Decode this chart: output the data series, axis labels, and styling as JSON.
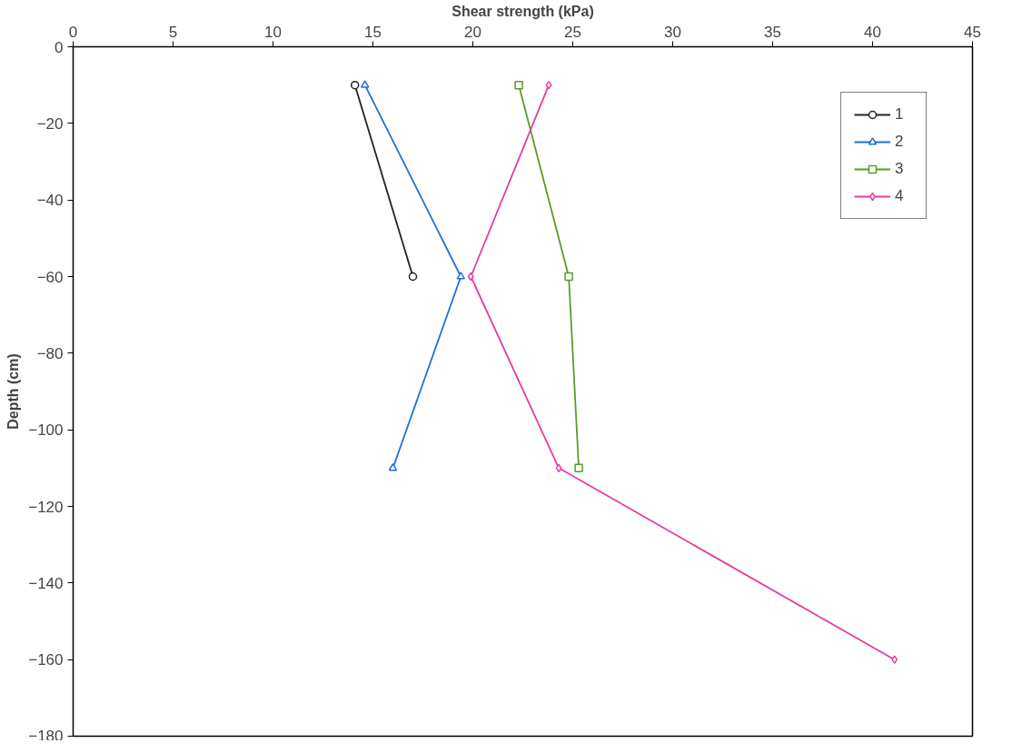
{
  "chart_data": {
    "type": "line",
    "xlabel": "Shear strength (kPa)",
    "ylabel": "Depth (cm)",
    "xlim": [
      0,
      45
    ],
    "xticks": [
      0,
      5,
      10,
      15,
      20,
      25,
      30,
      35,
      40,
      45
    ],
    "ylim": [
      -180,
      0
    ],
    "yticks": [
      0,
      -20,
      -40,
      -60,
      -80,
      -100,
      -120,
      -140,
      -160,
      -180
    ],
    "grid": false,
    "legend": "top right",
    "line_style": "solid",
    "series": [
      {
        "name": "1",
        "color": "#222222",
        "marker": "circle",
        "x": [
          14.1,
          17.0
        ],
        "values": [
          -10,
          -60
        ]
      },
      {
        "name": "2",
        "color": "#1f6fdc",
        "marker": "triangle",
        "x": [
          14.6,
          19.4,
          16.0
        ],
        "values": [
          -10,
          -60,
          -110
        ]
      },
      {
        "name": "3",
        "color": "#5a9a2a",
        "marker": "square",
        "x": [
          22.3,
          24.8,
          25.3
        ],
        "values": [
          -10,
          -60,
          -110
        ]
      },
      {
        "name": "4",
        "color": "#e83ca0",
        "marker": "diamond",
        "x": [
          23.8,
          19.9,
          24.3,
          41.1
        ],
        "values": [
          -10,
          -60,
          -110,
          -160
        ]
      }
    ]
  }
}
